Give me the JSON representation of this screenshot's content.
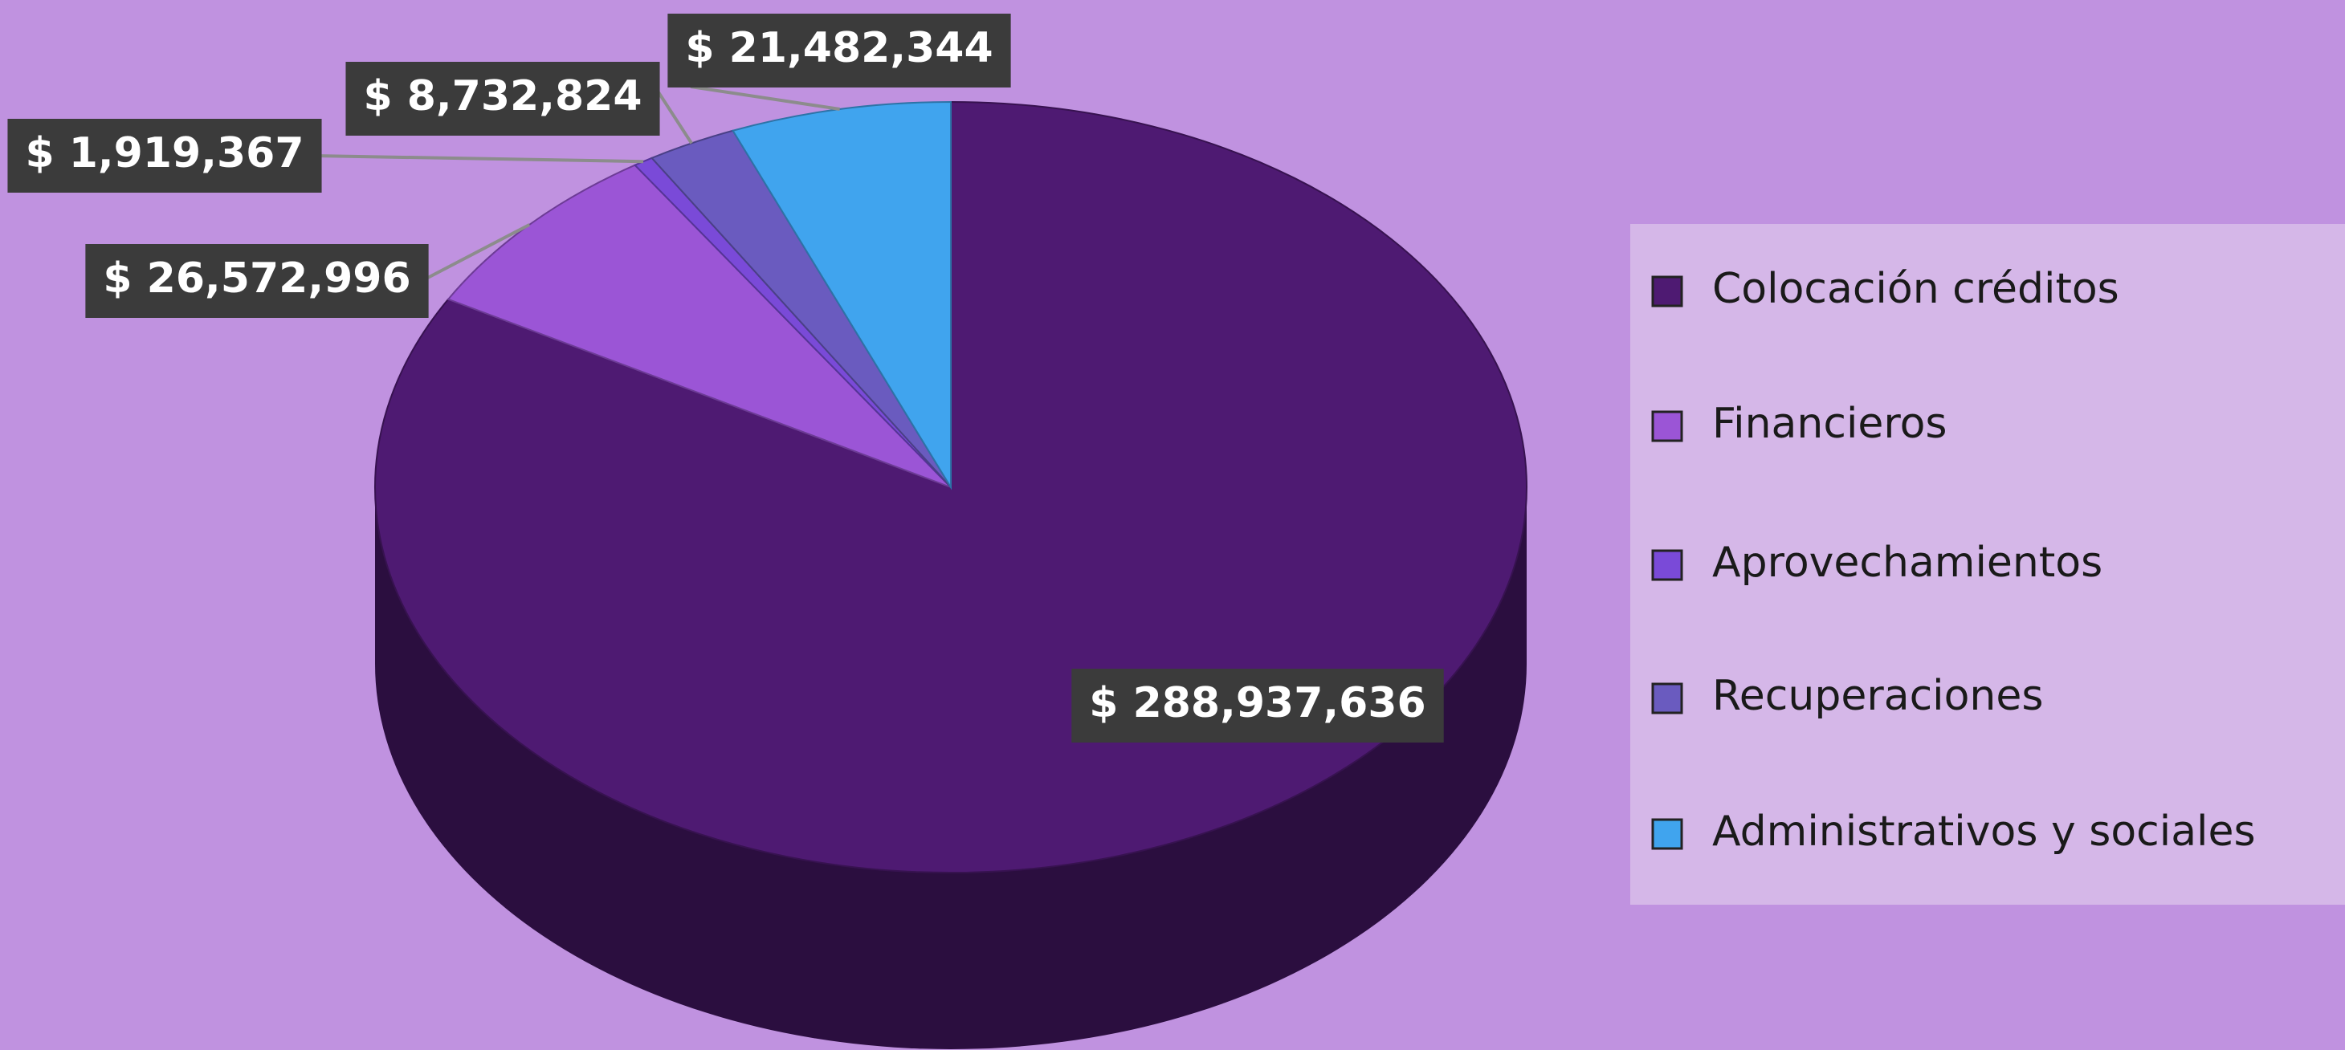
{
  "chart_data": {
    "type": "pie",
    "categories": [
      "Colocación créditos",
      "Financieros",
      "Aprovechamientos",
      "Recuperaciones",
      "Administrativos y sociales"
    ],
    "values": [
      288937636,
      26572996,
      1919367,
      8732824,
      21482344
    ],
    "value_labels": [
      "$ 288,937,636",
      "$ 26,572,996",
      "$ 1,919,367",
      "$ 8,732,824",
      "$ 21,482,344"
    ],
    "colors": [
      "#4e1a72",
      "#9b55d6",
      "#7a4ad8",
      "#6a5bbf",
      "#40a4ee"
    ],
    "legend": "right"
  }
}
